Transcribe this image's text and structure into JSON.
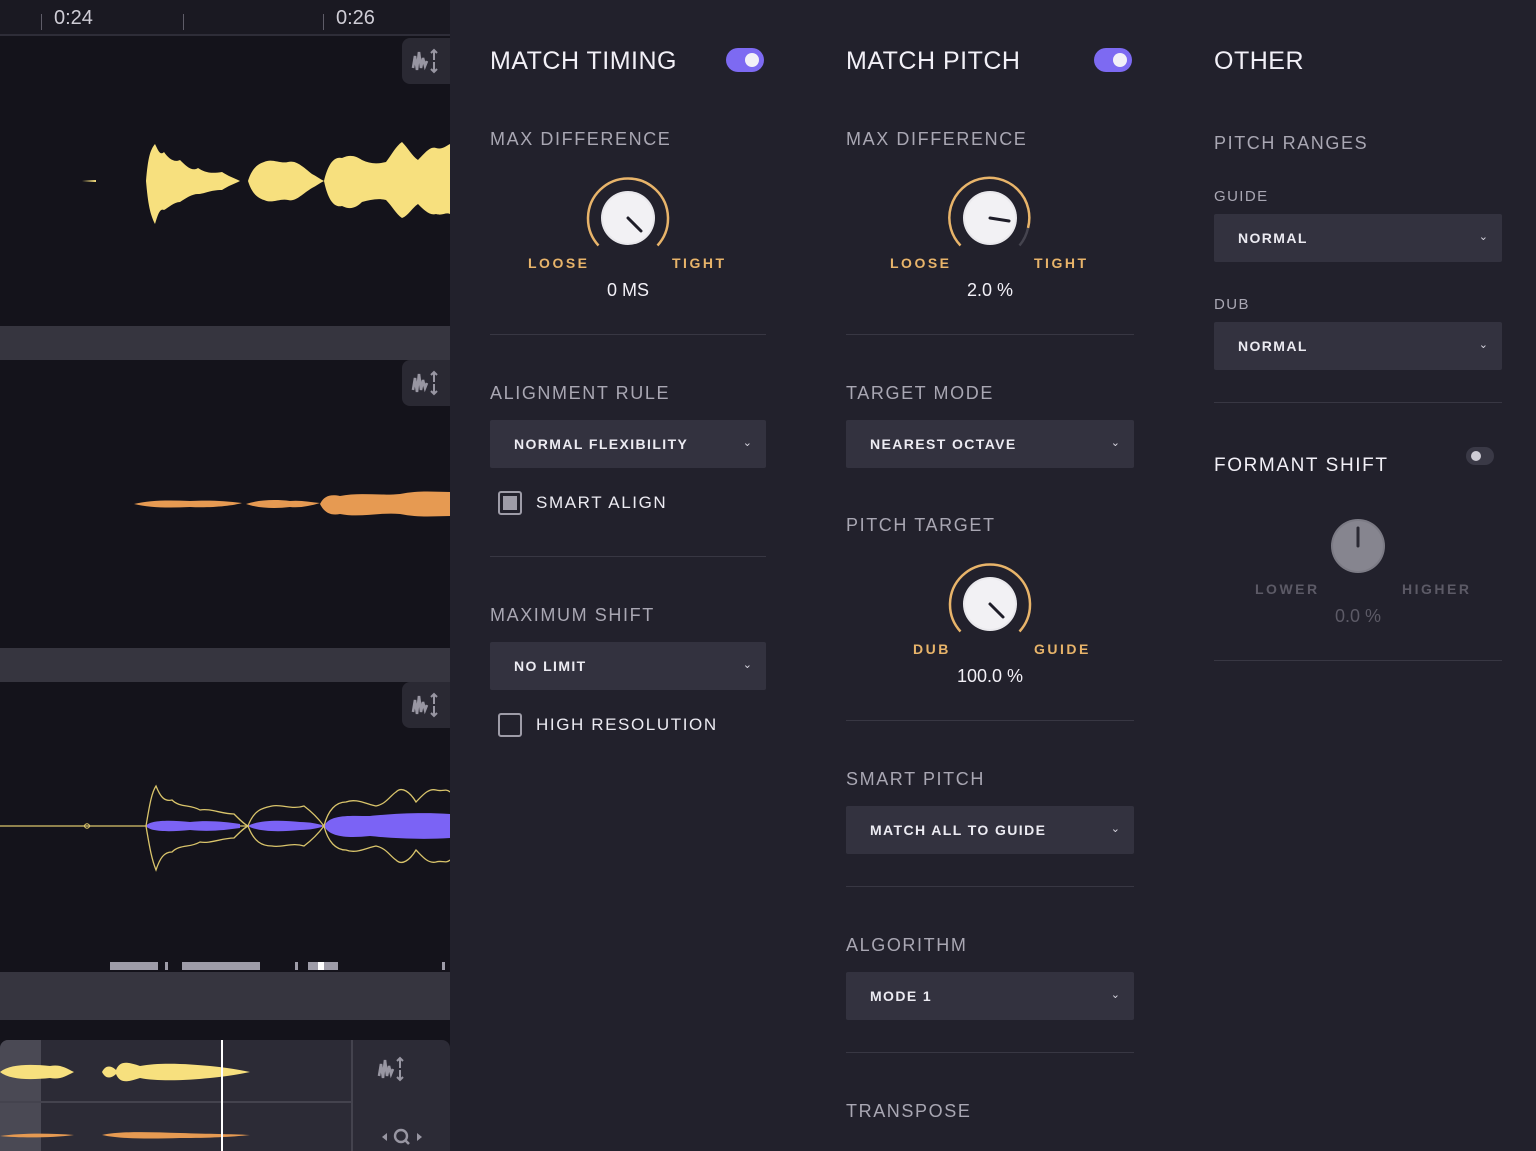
{
  "timeline": {
    "time_labels": [
      "0:24",
      "0:26"
    ]
  },
  "match_timing": {
    "title": "MATCH TIMING",
    "enabled": true,
    "max_difference": {
      "label": "MAX DIFFERENCE",
      "min_label": "LOOSE",
      "max_label": "TIGHT",
      "value_text": "0 MS"
    },
    "alignment_rule": {
      "label": "ALIGNMENT RULE",
      "selected": "NORMAL FLEXIBILITY"
    },
    "smart_align": {
      "label": "SMART ALIGN",
      "checked": true
    },
    "maximum_shift": {
      "label": "MAXIMUM SHIFT",
      "selected": "NO LIMIT"
    },
    "high_resolution": {
      "label": "HIGH RESOLUTION",
      "checked": false
    }
  },
  "match_pitch": {
    "title": "MATCH PITCH",
    "enabled": true,
    "max_difference": {
      "label": "MAX DIFFERENCE",
      "min_label": "LOOSE",
      "max_label": "TIGHT",
      "value_text": "2.0 %"
    },
    "target_mode": {
      "label": "TARGET MODE",
      "selected": "NEAREST OCTAVE"
    },
    "pitch_target": {
      "label": "PITCH TARGET",
      "min_label": "DUB",
      "max_label": "GUIDE",
      "value_text": "100.0 %"
    },
    "smart_pitch": {
      "label": "SMART PITCH",
      "selected": "MATCH ALL TO GUIDE"
    },
    "algorithm": {
      "label": "ALGORITHM",
      "selected": "MODE 1"
    },
    "transpose": {
      "label": "TRANSPOSE"
    }
  },
  "other": {
    "title": "OTHER",
    "pitch_ranges": {
      "label": "PITCH RANGES",
      "guide_label": "GUIDE",
      "guide_selected": "NORMAL",
      "dub_label": "DUB",
      "dub_selected": "NORMAL"
    },
    "formant_shift": {
      "label": "FORMANT SHIFT",
      "enabled": false,
      "min_label": "LOWER",
      "max_label": "HIGHER",
      "value_text": "0.0 %"
    }
  },
  "colors": {
    "accent": "#7d6af2",
    "guide_wave": "#f7e07e",
    "dub_wave": "#e69a52",
    "output_wave": "#7b63f5",
    "knob_arc": "#e8b46a"
  },
  "icons": [
    "waveform-height-icon",
    "chevron-down-icon",
    "zoom-icon"
  ]
}
